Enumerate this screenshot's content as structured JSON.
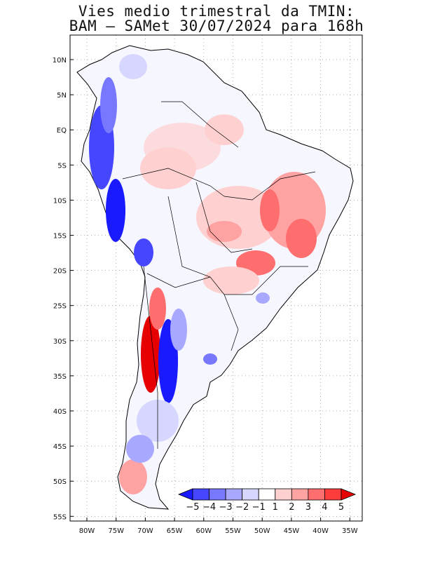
{
  "title_line1": "Vies medio trimestral da TMIN:",
  "title_line2": "BAM – SAMet 30/07/2024  para 168h",
  "lat_labels": [
    "10N",
    "5N",
    "EQ",
    "5S",
    "10S",
    "15S",
    "20S",
    "25S",
    "30S",
    "35S",
    "40S",
    "45S",
    "50S",
    "55S"
  ],
  "lon_labels": [
    "80W",
    "75W",
    "70W",
    "65W",
    "60W",
    "55W",
    "50W",
    "45W",
    "40W",
    "35W"
  ],
  "colorbar": {
    "labels": [
      "−5",
      "−4",
      "−3",
      "−2",
      "−1",
      "1",
      "2",
      "3",
      "4",
      "5"
    ],
    "colors": [
      "#1a1aff",
      "#4646ff",
      "#7878ff",
      "#a8a8ff",
      "#d6d6ff",
      "#ffffff",
      "#ffd0d0",
      "#ffa2a2",
      "#ff6e6e",
      "#ff3c3c",
      "#e60000"
    ]
  },
  "colors": {
    "grid": "#999999",
    "coast": "#000000",
    "frame": "#000000"
  }
}
